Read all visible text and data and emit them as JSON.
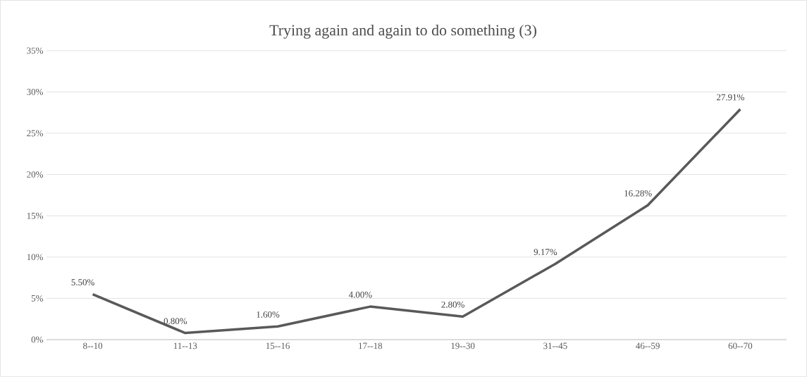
{
  "chart_data": {
    "type": "line",
    "title": "Trying again and again to do something (3)",
    "categories": [
      "8--10",
      "11--13",
      "15--16",
      "17--18",
      "19--30",
      "31--45",
      "46--59",
      "60--70"
    ],
    "values": [
      5.5,
      0.8,
      1.6,
      4.0,
      2.8,
      9.17,
      16.28,
      27.91
    ],
    "value_labels": [
      "5.50%",
      "0.80%",
      "1.60%",
      "4.00%",
      "2.80%",
      "9.17%",
      "16.28%",
      "27.91%"
    ],
    "color": "#595959",
    "ylim": [
      0,
      35
    ],
    "yticks": [
      {
        "value": 0,
        "label": "0%"
      },
      {
        "value": 5,
        "label": "5%"
      },
      {
        "value": 10,
        "label": "10%"
      },
      {
        "value": 15,
        "label": "15%"
      },
      {
        "value": 20,
        "label": "20%"
      },
      {
        "value": 25,
        "label": "25%"
      },
      {
        "value": 30,
        "label": "30%"
      },
      {
        "value": 35,
        "label": "35%"
      }
    ],
    "grid": "y"
  }
}
